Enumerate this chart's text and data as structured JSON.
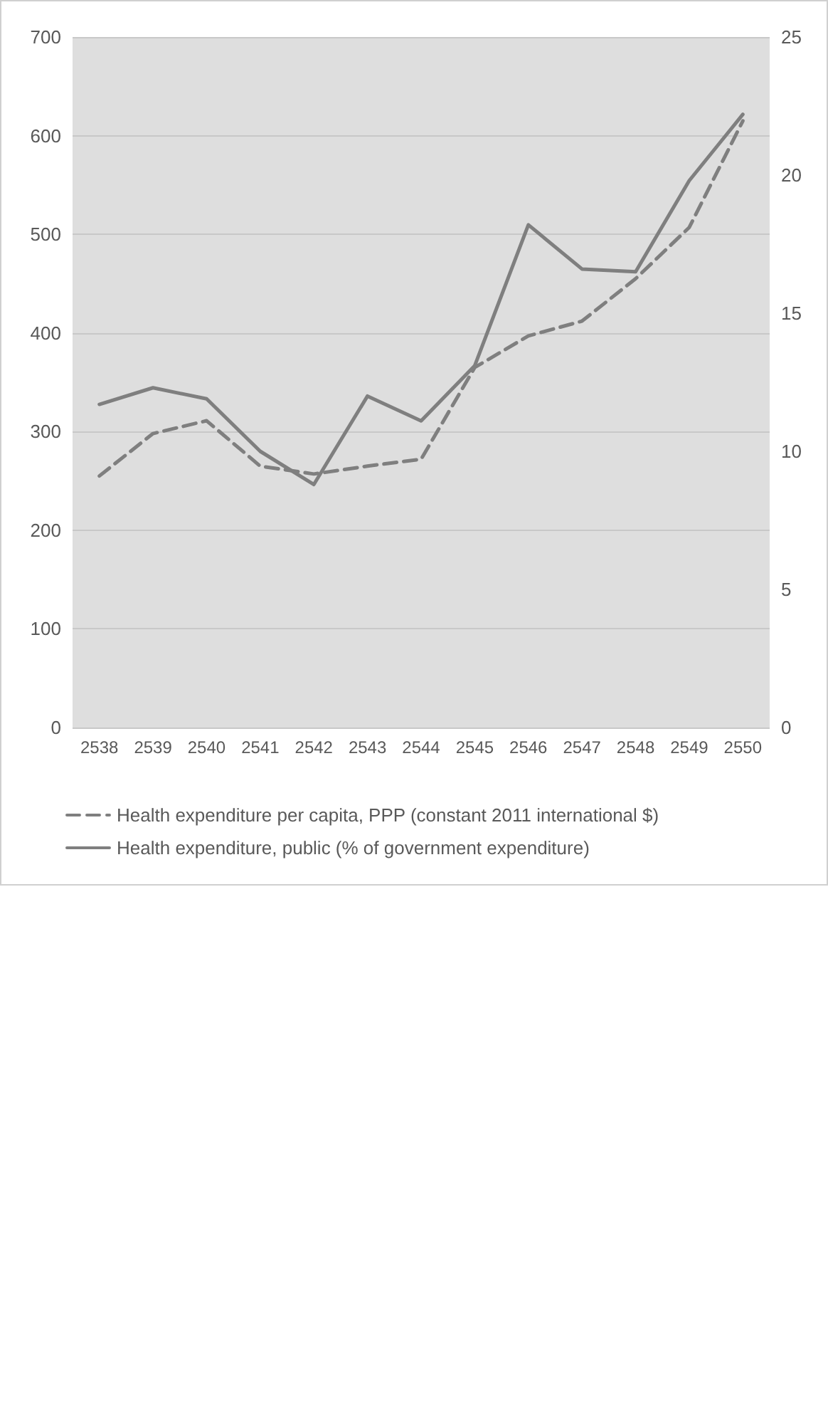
{
  "chart_data": {
    "type": "line",
    "categories": [
      "2538",
      "2539",
      "2540",
      "2541",
      "2542",
      "2543",
      "2544",
      "2545",
      "2546",
      "2547",
      "2548",
      "2549",
      "2550"
    ],
    "series": [
      {
        "name": "Health expenditure per capita, PPP (constant 2011 international $)",
        "color": "#7f7f7f",
        "line_style": "dashed",
        "values": [
          255,
          298,
          311,
          265,
          257,
          265,
          272,
          365,
          397,
          412,
          455,
          507,
          615
        ]
      },
      {
        "name": "Health expenditure, public (% of government expenditure)",
        "color": "#7f7f7f",
        "line_style": "solid",
        "axis": "y2",
        "values": [
          11.7,
          12.3,
          11.9,
          10.0,
          8.8,
          12.0,
          11.1,
          13.1,
          18.2,
          16.6,
          16.5,
          19.8,
          22.2
        ]
      }
    ],
    "ylim": [
      0,
      700
    ],
    "yticks": [
      0,
      100,
      200,
      300,
      400,
      500,
      600,
      700
    ],
    "y2lim": [
      0,
      25
    ],
    "y2ticks": [
      0,
      5,
      10,
      15,
      20,
      25
    ],
    "grid": "y",
    "legend": "bottom",
    "marker": "none"
  }
}
